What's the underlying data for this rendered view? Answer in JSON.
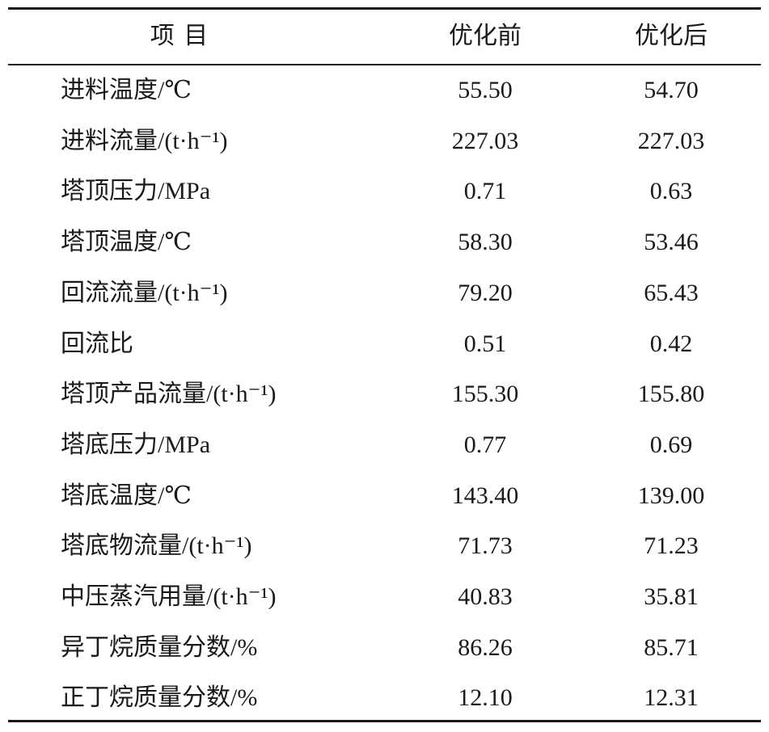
{
  "table": {
    "header": [
      "项 目",
      "优化前",
      "优化后"
    ],
    "rows": [
      [
        "进料温度/℃",
        "55.50",
        "54.70"
      ],
      [
        "进料流量/(t·h⁻¹)",
        "227.03",
        "227.03"
      ],
      [
        "塔顶压力/MPa",
        "0.71",
        "0.63"
      ],
      [
        "塔顶温度/℃",
        "58.30",
        "53.46"
      ],
      [
        "回流流量/(t·h⁻¹)",
        "79.20",
        "65.43"
      ],
      [
        "回流比",
        "0.51",
        "0.42"
      ],
      [
        "塔顶产品流量/(t·h⁻¹)",
        "155.30",
        "155.80"
      ],
      [
        "塔底压力/MPa",
        "0.77",
        "0.69"
      ],
      [
        "塔底温度/℃",
        "143.40",
        "139.00"
      ],
      [
        "塔底物流量/(t·h⁻¹)",
        "71.73",
        "71.23"
      ],
      [
        "中压蒸汽用量/(t·h⁻¹)",
        "40.83",
        "35.81"
      ],
      [
        "异丁烷质量分数/%",
        "86.26",
        "85.71"
      ],
      [
        "正丁烷质量分数/%",
        "12.10",
        "12.31"
      ]
    ]
  }
}
